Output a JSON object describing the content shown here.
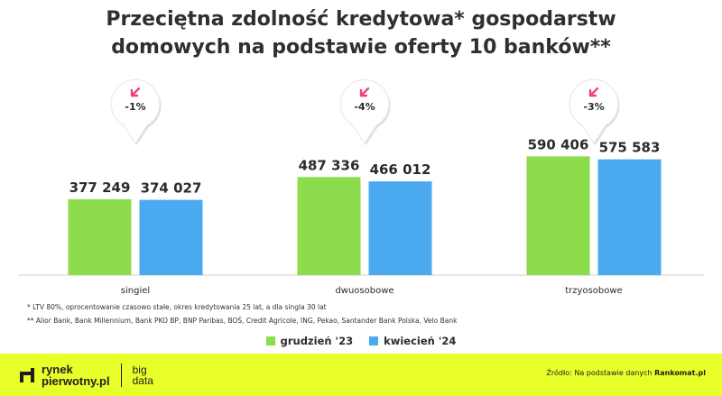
{
  "title_line1": "Przeciętna zdolność kredytowa* gospodarstw",
  "title_line2": "domowych na podstawie oferty 10 banków**",
  "colors": {
    "series1": "#8ddc4b",
    "series2": "#4aa9ef",
    "badge_arrow": "#f0417b",
    "footer_bg": "#e9ff2a"
  },
  "chart_data": {
    "type": "bar",
    "categories": [
      "singiel",
      "dwuosobowe",
      "trzyosobowe"
    ],
    "series": [
      {
        "name": "grudzień '23",
        "values": [
          377249,
          487336,
          590406
        ],
        "labels": [
          "377 249",
          "487 336",
          "590 406"
        ]
      },
      {
        "name": "kwiecień '24",
        "values": [
          374027,
          466012,
          575583
        ],
        "labels": [
          "374 027",
          "466 012",
          "575 583"
        ]
      }
    ],
    "changes": [
      "-1%",
      "-4%",
      "-3%"
    ],
    "legend_position": "bottom",
    "grid": false
  },
  "notes": {
    "line1": "* LTV 80%, oprocentowanie czasowo stałe, okres kredytowania 25 lat, a dla singla 30 lat",
    "line2": "** Alior Bank, Bank Millennium, Bank PKO BP, BNP Paribas, BOŚ, Credit Agricole, ING, Pekao, Santander Bank Polska, Velo Bank"
  },
  "legend": {
    "item1": "grudzień '23",
    "item2": "kwiecień '24"
  },
  "footer": {
    "brand_line1": "rynek",
    "brand_line2": "pierwotny.pl",
    "brand_sub1": "big",
    "brand_sub2": "data",
    "source_prefix": "Źródło: Na podstawie danych ",
    "source_name": "Rankomat.pl"
  }
}
